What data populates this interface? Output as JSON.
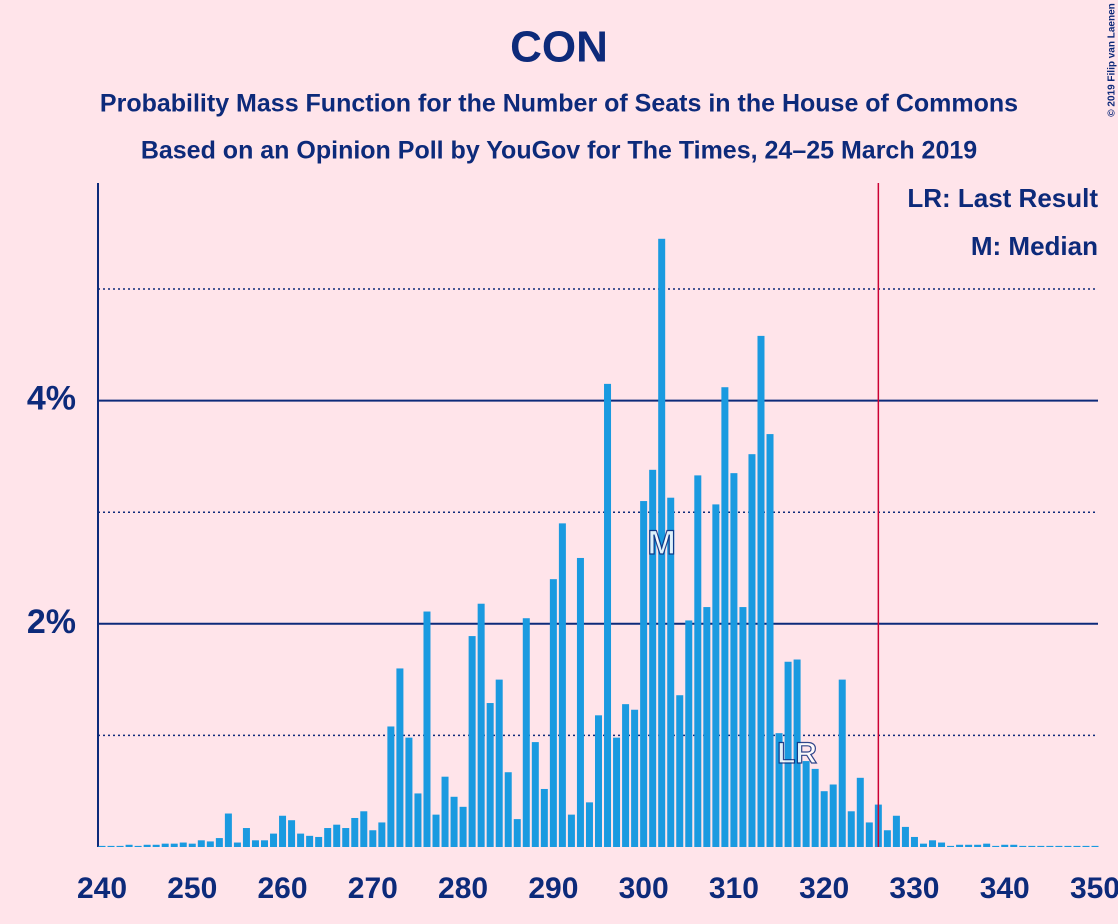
{
  "chart_data": {
    "type": "bar",
    "title": "CON",
    "subtitle": [
      "Probability Mass Function for the Number of Seats in the House of Commons",
      "Based on an Opinion Poll by YouGov for The Times, 24–25 March 2019"
    ],
    "copyright": "© 2019 Filip van Laenen",
    "legend": [
      "LR: Last Result",
      "M: Median"
    ],
    "x": [
      240,
      241,
      242,
      243,
      244,
      245,
      246,
      247,
      248,
      249,
      250,
      251,
      252,
      253,
      254,
      255,
      256,
      257,
      258,
      259,
      260,
      261,
      262,
      263,
      264,
      265,
      266,
      267,
      268,
      269,
      270,
      271,
      272,
      273,
      274,
      275,
      276,
      277,
      278,
      279,
      280,
      281,
      282,
      283,
      284,
      285,
      286,
      287,
      288,
      289,
      290,
      291,
      292,
      293,
      294,
      295,
      296,
      297,
      298,
      299,
      300,
      301,
      302,
      303,
      304,
      305,
      306,
      307,
      308,
      309,
      310,
      311,
      312,
      313,
      314,
      315,
      316,
      317,
      318,
      319,
      320,
      321,
      322,
      323,
      324,
      325,
      326,
      327,
      328,
      329,
      330,
      331,
      332,
      333,
      334,
      335,
      336,
      337,
      338,
      339,
      340,
      341,
      342,
      343,
      344,
      345,
      346,
      347,
      348,
      349,
      350
    ],
    "values": [
      0.01,
      0.01,
      0.01,
      0.02,
      0.01,
      0.02,
      0.02,
      0.03,
      0.03,
      0.04,
      0.03,
      0.06,
      0.05,
      0.08,
      0.3,
      0.04,
      0.17,
      0.06,
      0.06,
      0.12,
      0.28,
      0.24,
      0.12,
      0.1,
      0.09,
      0.17,
      0.2,
      0.17,
      0.26,
      0.32,
      0.15,
      0.22,
      1.08,
      1.6,
      0.98,
      0.48,
      2.11,
      0.29,
      0.63,
      0.45,
      0.36,
      1.89,
      2.18,
      1.29,
      1.5,
      0.67,
      0.25,
      2.05,
      0.94,
      0.52,
      2.4,
      2.9,
      0.29,
      2.59,
      0.4,
      1.18,
      4.15,
      0.98,
      1.28,
      1.23,
      3.1,
      3.38,
      5.45,
      3.13,
      1.36,
      2.03,
      3.33,
      2.15,
      3.07,
      4.12,
      3.35,
      2.15,
      3.52,
      4.58,
      3.7,
      1.02,
      1.66,
      1.68,
      0.77,
      0.7,
      0.5,
      0.56,
      1.5,
      0.32,
      0.62,
      0.22,
      0.38,
      0.15,
      0.28,
      0.18,
      0.09,
      0.03,
      0.06,
      0.04,
      0.01,
      0.02,
      0.02,
      0.02,
      0.03,
      0.01,
      0.02,
      0.02,
      0.01,
      0.01,
      0.01,
      0.01,
      0.01,
      0.01,
      0.01,
      0.01,
      0.01
    ],
    "color": "#1a9ae0",
    "xlim": [
      240,
      350
    ],
    "xticks": [
      240,
      250,
      260,
      270,
      280,
      290,
      300,
      310,
      320,
      330,
      340,
      350
    ],
    "ylim": [
      0,
      5.95
    ],
    "yticks": [
      {
        "value": 2,
        "label": "2%"
      },
      {
        "value": 4,
        "label": "4%"
      }
    ],
    "minor_yticks": [
      1,
      3,
      5
    ],
    "grid": true,
    "majority": 326,
    "majority_color": "#cc0033",
    "median": {
      "seat": 302,
      "label": "M"
    },
    "last_result": {
      "seat": 317,
      "label": "LR"
    }
  }
}
